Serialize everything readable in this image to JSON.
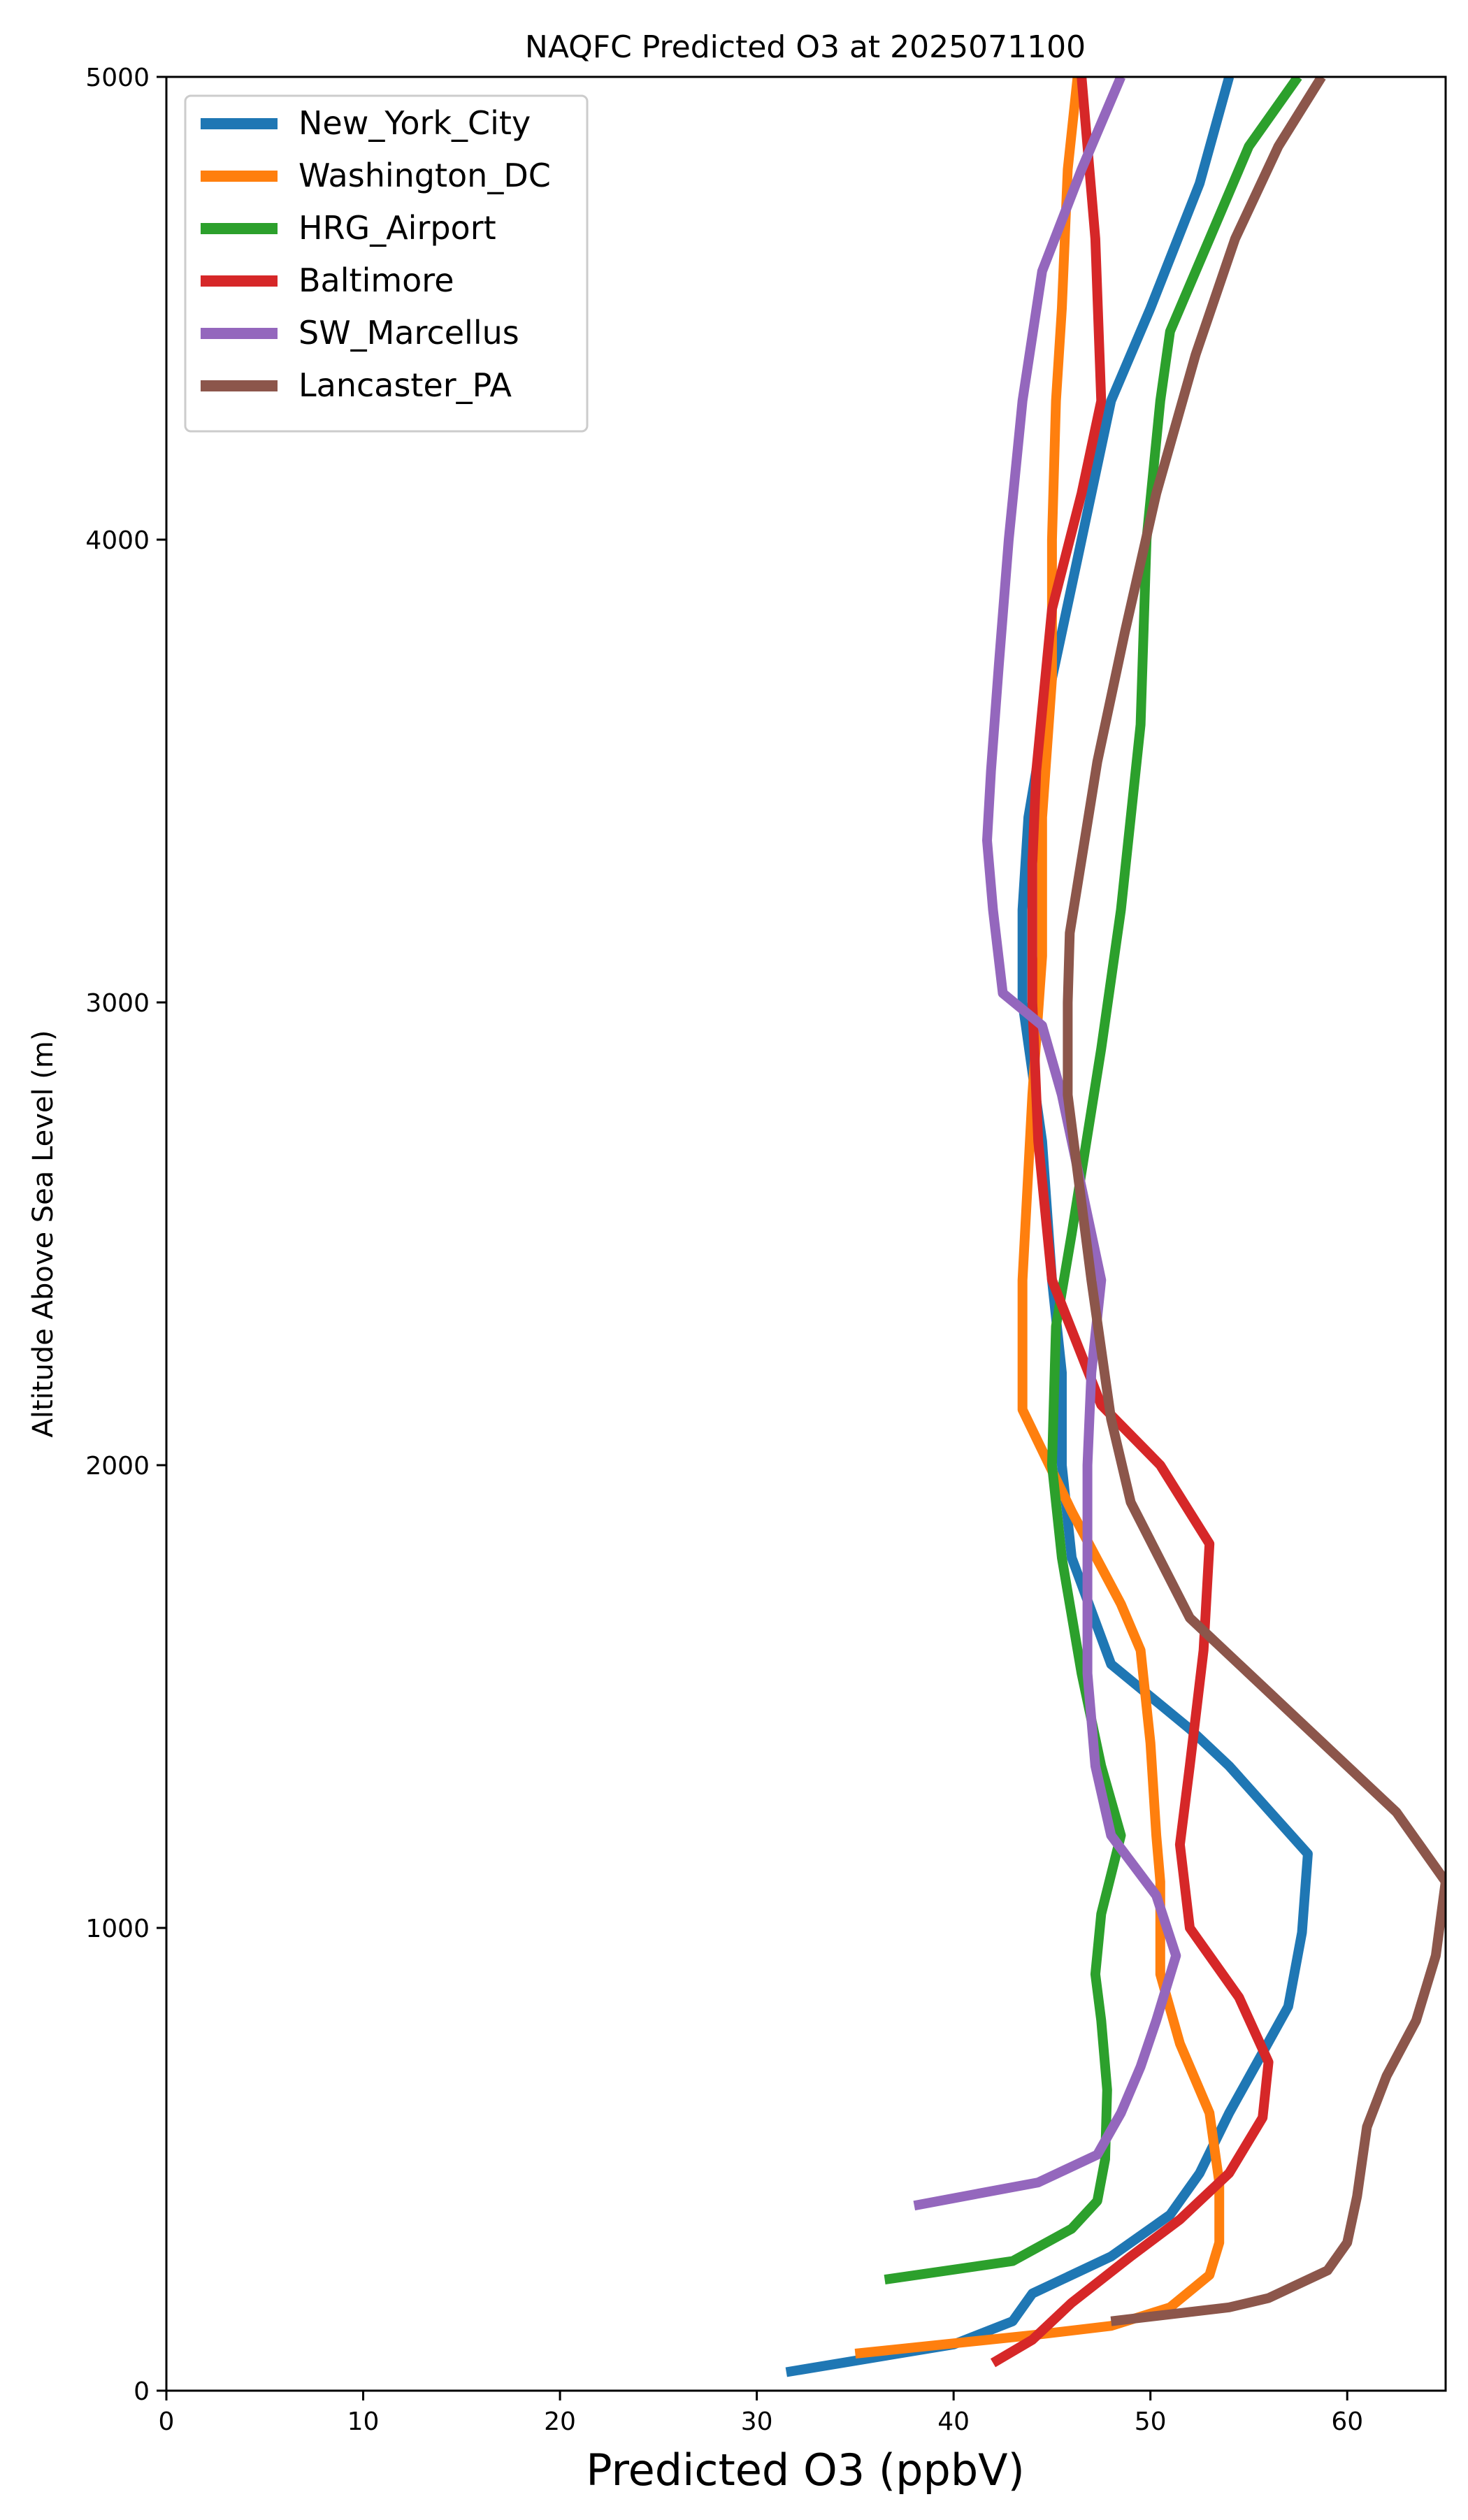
{
  "chart_data": {
    "type": "line",
    "title": "NAQFC Predicted O3 at 2025071100",
    "xlabel": "Predicted O3 (ppbV)",
    "ylabel": "Altitude Above Sea Level (m)",
    "xlim": [
      0,
      65
    ],
    "ylim": [
      0,
      5000
    ],
    "xticks": [
      0,
      10,
      20,
      30,
      40,
      50,
      60
    ],
    "yticks": [
      0,
      1000,
      2000,
      3000,
      4000,
      5000
    ],
    "grid": false,
    "legend_position": "top-left",
    "series": [
      {
        "name": "New_York_City",
        "color": "#1f77b4",
        "points": [
          [
            31.5,
            40
          ],
          [
            40,
            100
          ],
          [
            43,
            150
          ],
          [
            44,
            210
          ],
          [
            48,
            290
          ],
          [
            51,
            380
          ],
          [
            52.5,
            470
          ],
          [
            54,
            600
          ],
          [
            57,
            830
          ],
          [
            57.7,
            990
          ],
          [
            58,
            1160
          ],
          [
            54,
            1350
          ],
          [
            52,
            1430
          ],
          [
            48,
            1570
          ],
          [
            46,
            1800
          ],
          [
            45.5,
            2000
          ],
          [
            45.5,
            2200
          ],
          [
            45,
            2400
          ],
          [
            44.5,
            2700
          ],
          [
            43.5,
            3000
          ],
          [
            43.5,
            3200
          ],
          [
            43.8,
            3400
          ],
          [
            45,
            3700
          ],
          [
            46.5,
            4000
          ],
          [
            48,
            4300
          ],
          [
            50,
            4500
          ],
          [
            52.5,
            4770
          ],
          [
            54,
            5000
          ]
        ]
      },
      {
        "name": "Washington_DC",
        "color": "#ff7f0e",
        "points": [
          [
            35,
            80
          ],
          [
            44,
            120
          ],
          [
            48,
            140
          ],
          [
            51,
            180
          ],
          [
            53,
            250
          ],
          [
            53.5,
            320
          ],
          [
            53.5,
            450
          ],
          [
            53,
            600
          ],
          [
            51.5,
            750
          ],
          [
            50.5,
            900
          ],
          [
            50.5,
            1100
          ],
          [
            50.3,
            1200
          ],
          [
            50,
            1400
          ],
          [
            49.5,
            1600
          ],
          [
            48.5,
            1700
          ],
          [
            46,
            1900
          ],
          [
            43.5,
            2120
          ],
          [
            43.5,
            2400
          ],
          [
            44,
            2800
          ],
          [
            44.5,
            3100
          ],
          [
            44.5,
            3400
          ],
          [
            45,
            3700
          ],
          [
            45,
            4000
          ],
          [
            45.2,
            4300
          ],
          [
            45.5,
            4500
          ],
          [
            45.8,
            4800
          ],
          [
            46.3,
            5000
          ]
        ]
      },
      {
        "name": "HRG_Airport",
        "color": "#2ca02c",
        "points": [
          [
            36.5,
            240
          ],
          [
            43,
            280
          ],
          [
            46,
            350
          ],
          [
            47.3,
            410
          ],
          [
            47.7,
            500
          ],
          [
            47.8,
            650
          ],
          [
            47.5,
            800
          ],
          [
            47.2,
            900
          ],
          [
            47.5,
            1030
          ],
          [
            48.5,
            1200
          ],
          [
            47.5,
            1350
          ],
          [
            46.5,
            1550
          ],
          [
            45.5,
            1800
          ],
          [
            45,
            2000
          ],
          [
            45.2,
            2300
          ],
          [
            46,
            2500
          ],
          [
            47.5,
            2900
          ],
          [
            48.5,
            3200
          ],
          [
            49.5,
            3600
          ],
          [
            49.8,
            4000
          ],
          [
            50.5,
            4300
          ],
          [
            51,
            4450
          ],
          [
            53,
            4650
          ],
          [
            55,
            4850
          ],
          [
            57.5,
            5000
          ]
        ]
      },
      {
        "name": "Baltimore",
        "color": "#d62728",
        "points": [
          [
            42,
            60
          ],
          [
            44,
            110
          ],
          [
            46,
            190
          ],
          [
            47.5,
            240
          ],
          [
            49,
            290
          ],
          [
            51.5,
            370
          ],
          [
            54,
            470
          ],
          [
            55.7,
            590
          ],
          [
            56,
            710
          ],
          [
            54.5,
            850
          ],
          [
            52,
            1000
          ],
          [
            51.5,
            1180
          ],
          [
            52,
            1350
          ],
          [
            52.7,
            1600
          ],
          [
            53,
            1830
          ],
          [
            50.5,
            2000
          ],
          [
            47.5,
            2130
          ],
          [
            45,
            2400
          ],
          [
            44.3,
            2700
          ],
          [
            44,
            3000
          ],
          [
            44,
            3300
          ],
          [
            44.2,
            3500
          ],
          [
            45,
            3850
          ],
          [
            46.5,
            4100
          ],
          [
            47.5,
            4300
          ],
          [
            47.2,
            4650
          ],
          [
            46.5,
            5000
          ]
        ]
      },
      {
        "name": "SW_Marcellus",
        "color": "#9467bd",
        "points": [
          [
            38,
            400
          ],
          [
            44.3,
            450
          ],
          [
            47.3,
            510
          ],
          [
            48.5,
            600
          ],
          [
            49.5,
            700
          ],
          [
            50.3,
            800
          ],
          [
            51.3,
            940
          ],
          [
            50.3,
            1070
          ],
          [
            48,
            1200
          ],
          [
            47.2,
            1350
          ],
          [
            46.8,
            1550
          ],
          [
            46.8,
            1800
          ],
          [
            46.8,
            2000
          ],
          [
            47,
            2200
          ],
          [
            47.5,
            2400
          ],
          [
            46.5,
            2600
          ],
          [
            45.5,
            2800
          ],
          [
            44.5,
            2950
          ],
          [
            42.5,
            3020
          ],
          [
            42,
            3200
          ],
          [
            41.7,
            3350
          ],
          [
            41.9,
            3500
          ],
          [
            42.3,
            3730
          ],
          [
            42.8,
            4000
          ],
          [
            43.5,
            4300
          ],
          [
            44.5,
            4580
          ],
          [
            46.5,
            4800
          ],
          [
            48.5,
            5000
          ]
        ]
      },
      {
        "name": "Lancaster_PA",
        "color": "#8c564b",
        "points": [
          [
            48,
            150
          ],
          [
            54,
            180
          ],
          [
            56,
            200
          ],
          [
            59,
            260
          ],
          [
            60,
            320
          ],
          [
            60.5,
            420
          ],
          [
            61,
            570
          ],
          [
            62,
            680
          ],
          [
            63.5,
            800
          ],
          [
            64.5,
            940
          ],
          [
            65,
            1100
          ],
          [
            62.5,
            1250
          ],
          [
            57.5,
            1450
          ],
          [
            52,
            1670
          ],
          [
            49,
            1920
          ],
          [
            48,
            2100
          ],
          [
            47,
            2400
          ],
          [
            45.8,
            2800
          ],
          [
            45.8,
            3000
          ],
          [
            45.9,
            3150
          ],
          [
            47.3,
            3520
          ],
          [
            48.7,
            3800
          ],
          [
            50.3,
            4100
          ],
          [
            52.3,
            4400
          ],
          [
            54.3,
            4650
          ],
          [
            56.5,
            4850
          ],
          [
            58.7,
            5000
          ]
        ]
      }
    ]
  }
}
